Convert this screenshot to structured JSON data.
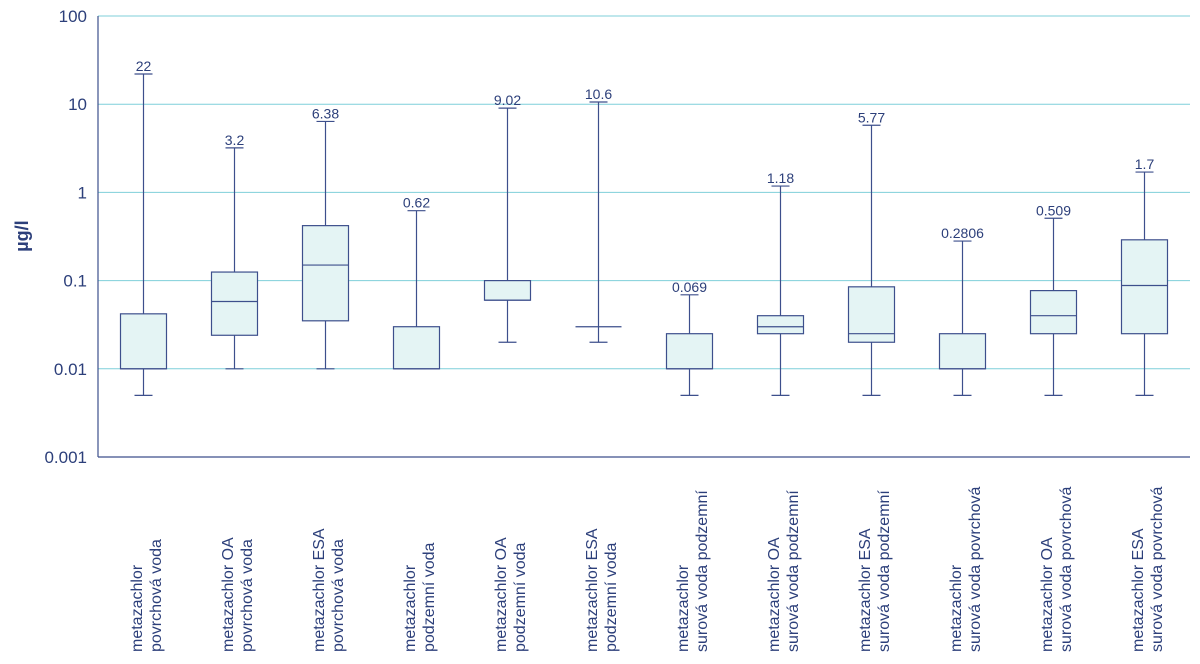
{
  "chart_data": {
    "type": "box",
    "ylabel": "µg/l",
    "yscale": "log",
    "ylim": [
      0.001,
      100
    ],
    "yticks": [
      "100",
      "10",
      "1",
      "0.1",
      "0.01",
      "0.001"
    ],
    "grid": true,
    "colors": {
      "box_fill": "#e4f4f4",
      "stroke": "#3d4f8c",
      "grid": "#7fcfda",
      "text": "#2c3f7a"
    },
    "categories": [
      [
        "metazachlor",
        "povrchová voda"
      ],
      [
        "metazachlor OA",
        "povrchová voda"
      ],
      [
        "metazachlor ESA",
        "povrchová voda"
      ],
      [
        "metazachlor",
        "podzemní voda"
      ],
      [
        "metazachlor OA",
        "podzemní voda"
      ],
      [
        "metazachlor ESA",
        "podzemní voda"
      ],
      [
        "metazachlor",
        "surová voda podzemní"
      ],
      [
        "metazachlor OA",
        "surová voda podzemní"
      ],
      [
        "metazachlor ESA",
        "surová voda podzemní"
      ],
      [
        "metazachlor",
        "surová voda povrchová"
      ],
      [
        "metazachlor OA",
        "surová voda povrchová"
      ],
      [
        "metazachlor ESA",
        "surová voda povrchová"
      ]
    ],
    "boxes": [
      {
        "min": 0.005,
        "q1": 0.01,
        "median": 0.01,
        "q3": 0.042,
        "max": 22,
        "max_label": "22"
      },
      {
        "min": 0.01,
        "q1": 0.024,
        "median": 0.058,
        "q3": 0.125,
        "max": 3.2,
        "max_label": "3.2"
      },
      {
        "min": 0.01,
        "q1": 0.035,
        "median": 0.15,
        "q3": 0.42,
        "max": 6.38,
        "max_label": "6.38"
      },
      {
        "min": 0.01,
        "q1": 0.01,
        "median": 0.01,
        "q3": 0.03,
        "max": 0.62,
        "max_label": "0.62"
      },
      {
        "min": 0.02,
        "q1": 0.06,
        "median": 0.06,
        "q3": 0.1,
        "max": 9.02,
        "max_label": "9.02"
      },
      {
        "min": 0.02,
        "q1": 0.03,
        "median": 0.03,
        "q3": 0.03,
        "max": 10.6,
        "max_label": "10.6"
      },
      {
        "min": 0.005,
        "q1": 0.01,
        "median": 0.01,
        "q3": 0.025,
        "max": 0.069,
        "max_label": "0.069"
      },
      {
        "min": 0.005,
        "q1": 0.025,
        "median": 0.03,
        "q3": 0.04,
        "max": 1.18,
        "max_label": "1.18"
      },
      {
        "min": 0.005,
        "q1": 0.02,
        "median": 0.025,
        "q3": 0.085,
        "max": 5.77,
        "max_label": "5.77"
      },
      {
        "min": 0.005,
        "q1": 0.01,
        "median": 0.01,
        "q3": 0.025,
        "max": 0.2806,
        "max_label": "0.2806"
      },
      {
        "min": 0.005,
        "q1": 0.025,
        "median": 0.04,
        "q3": 0.077,
        "max": 0.509,
        "max_label": "0.509"
      },
      {
        "min": 0.005,
        "q1": 0.025,
        "median": 0.088,
        "q3": 0.29,
        "max": 1.7,
        "max_label": "1.7"
      }
    ]
  }
}
